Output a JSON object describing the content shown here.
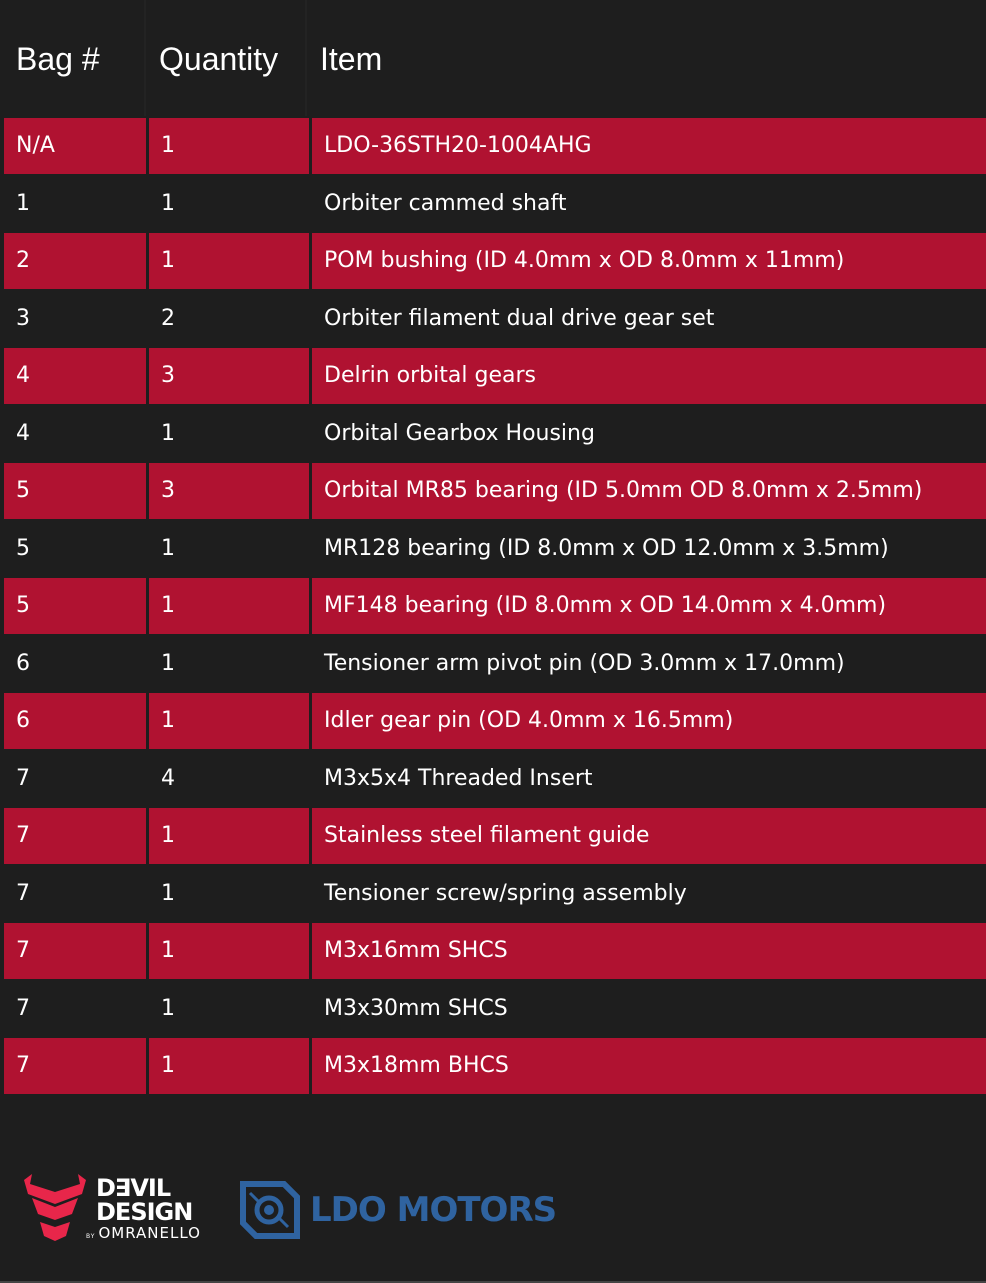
{
  "headers": {
    "bag": "Bag #",
    "quantity": "Quantity",
    "item": "Item"
  },
  "colors": {
    "row_accent": "#b01231",
    "background": "#1e1e1e",
    "ldo_blue": "#2f63a0",
    "devil_red": "#e8264a"
  },
  "rows": [
    {
      "bag": "N/A",
      "qty": "1",
      "item": "LDO-36STH20-1004AHG"
    },
    {
      "bag": "1",
      "qty": "1",
      "item": "Orbiter cammed shaft"
    },
    {
      "bag": "2",
      "qty": "1",
      "item": "POM bushing (ID 4.0mm x OD 8.0mm x 11mm)"
    },
    {
      "bag": "3",
      "qty": "2",
      "item": "Orbiter filament dual drive gear set"
    },
    {
      "bag": "4",
      "qty": "3",
      "item": "Delrin orbital gears"
    },
    {
      "bag": "4",
      "qty": "1",
      "item": "Orbital Gearbox Housing"
    },
    {
      "bag": "5",
      "qty": "3",
      "item": "Orbital MR85 bearing (ID 5.0mm OD 8.0mm x 2.5mm)"
    },
    {
      "bag": "5",
      "qty": "1",
      "item": "MR128 bearing (ID 8.0mm x OD 12.0mm x 3.5mm)"
    },
    {
      "bag": "5",
      "qty": "1",
      "item": "MF148 bearing (ID 8.0mm x OD 14.0mm x 4.0mm)"
    },
    {
      "bag": "6",
      "qty": "1",
      "item": "Tensioner arm pivot pin (OD 3.0mm x 17.0mm)"
    },
    {
      "bag": "6",
      "qty": "1",
      "item": "Idler gear pin (OD 4.0mm x 16.5mm)"
    },
    {
      "bag": "7",
      "qty": "4",
      "item": "M3x5x4 Threaded Insert"
    },
    {
      "bag": "7",
      "qty": "1",
      "item": "Stainless steel filament guide"
    },
    {
      "bag": "7",
      "qty": "1",
      "item": "Tensioner screw/spring assembly"
    },
    {
      "bag": "7",
      "qty": "1",
      "item": "M3x16mm SHCS"
    },
    {
      "bag": "7",
      "qty": "1",
      "item": "M3x30mm SHCS"
    },
    {
      "bag": "7",
      "qty": "1",
      "item": "M3x18mm BHCS"
    }
  ],
  "logos": {
    "devil_line1": "D∃VIL",
    "devil_line2": "DESIGN",
    "devil_by": "BY",
    "devil_sub": "OMRANELLO",
    "ldo": "LDO MOTORS"
  }
}
